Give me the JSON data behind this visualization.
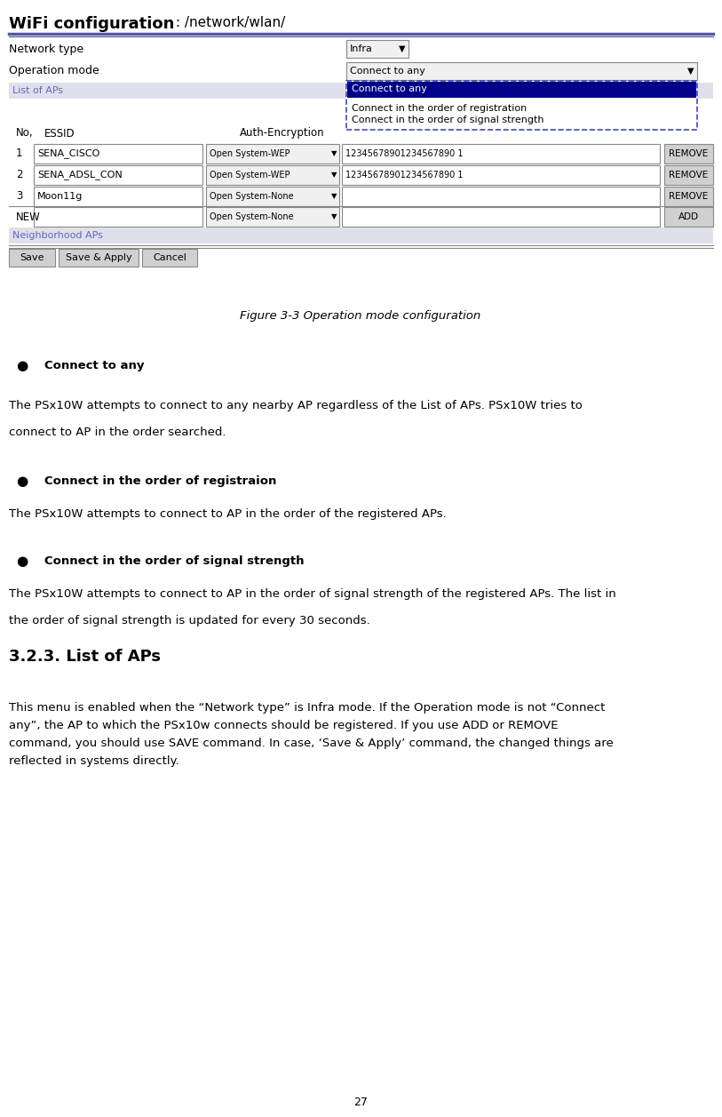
{
  "bg_color": "#ffffff",
  "page_width": 8.13,
  "page_height": 12.57,
  "dpi": 100,
  "wifi_title_bold": "WiFi configuration",
  "wifi_title_normal": " : /network/wlan/",
  "figure_caption": "Figure 3-3 Operation mode configuration",
  "bullet_sections": [
    {
      "heading": "Connect to any",
      "body_line1": "The PSx10W attempts to connect to any nearby AP regardless of the List of APs. PSx10W tries to",
      "body_line2": "connect to AP in the order searched."
    },
    {
      "heading": "Connect in the order of registraion",
      "body_line1": "The PSx10W attempts to connect to AP in the order of the registered APs.",
      "body_line2": ""
    },
    {
      "heading": "Connect in the order of signal strength",
      "body_line1": "The PSx10W attempts to connect to AP in the order of signal strength of the registered APs. The list in",
      "body_line2": "the order of signal strength is updated for every 30 seconds."
    }
  ],
  "section_heading": "3.2.3. List of APs",
  "section_body_lines": [
    "This menu is enabled when the “Network type” is Infra mode. If the Operation mode is not “Connect",
    "any”, the AP to which the PSx10w connects should be registered. If you use ADD or REMOVE",
    "command, you should use SAVE command. In case, ‘Save & Apply’ command, the changed things are",
    "reflected in systems directly."
  ],
  "page_number": "27",
  "list_aps_color": "#6666bb",
  "neighborhood_color": "#6666bb",
  "header_line_color": "#5555aa"
}
